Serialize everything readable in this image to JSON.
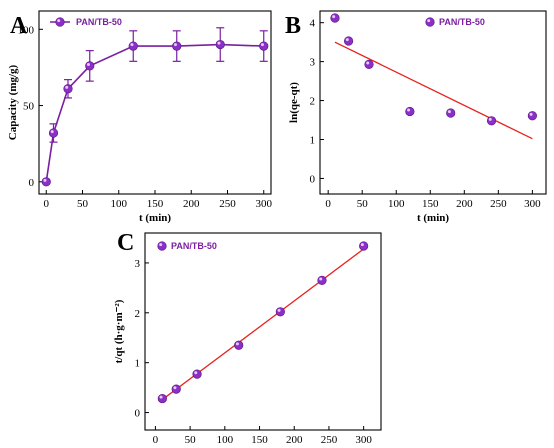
{
  "colors": {
    "series": "#7a1fa0",
    "marker": "#8a2fc8",
    "fit": "#e8221d",
    "axis": "#000000"
  },
  "chart_data": [
    {
      "panel": "A",
      "type": "line",
      "xlabel": "t (min)",
      "ylabel": "Capacity (mg/g)",
      "xlim": [
        -10,
        310
      ],
      "ylim": [
        -8,
        112
      ],
      "xticks": [
        0,
        50,
        100,
        150,
        200,
        250,
        300
      ],
      "yticks": [
        0,
        50,
        100
      ],
      "legend_position": "top-left",
      "series": [
        {
          "name": "PAN/TB-50",
          "x": [
            0,
            10,
            30,
            60,
            120,
            180,
            240,
            300
          ],
          "y": [
            0,
            32,
            61,
            76,
            89,
            89,
            90,
            89
          ],
          "error": [
            0,
            6,
            6,
            10,
            10,
            10,
            11,
            10
          ]
        }
      ]
    },
    {
      "panel": "B",
      "type": "scatter",
      "xlabel": "t (min)",
      "ylabel": "ln(qe-qt)",
      "xlim": [
        -12,
        320
      ],
      "ylim": [
        -0.4,
        4.3
      ],
      "xticks": [
        0,
        50,
        100,
        150,
        200,
        250,
        300
      ],
      "yticks": [
        0,
        1,
        2,
        3,
        4
      ],
      "legend_position": "top-right",
      "series": [
        {
          "name": "PAN/TB-50",
          "x": [
            10,
            30,
            60,
            120,
            180,
            240,
            300
          ],
          "y": [
            4.12,
            3.53,
            2.93,
            1.72,
            1.68,
            1.48,
            1.61
          ]
        }
      ],
      "fit_line": {
        "x": [
          10,
          300
        ],
        "y": [
          3.5,
          1.02
        ]
      }
    },
    {
      "panel": "C",
      "type": "scatter",
      "xlabel": "t (min)",
      "ylabel": "t/qt (h·g·m⁻²)",
      "xlim": [
        -15,
        325
      ],
      "ylim": [
        -0.35,
        3.6
      ],
      "xticks": [
        0,
        50,
        100,
        150,
        200,
        250,
        300
      ],
      "yticks": [
        0,
        1,
        2,
        3
      ],
      "legend_position": "top-left",
      "series": [
        {
          "name": "PAN/TB-50",
          "x": [
            10,
            30,
            60,
            120,
            180,
            240,
            300
          ],
          "y": [
            0.28,
            0.47,
            0.77,
            1.35,
            2.02,
            2.65,
            3.34
          ]
        }
      ],
      "fit_line": {
        "x": [
          10,
          300
        ],
        "y": [
          0.26,
          3.28
        ]
      }
    }
  ]
}
